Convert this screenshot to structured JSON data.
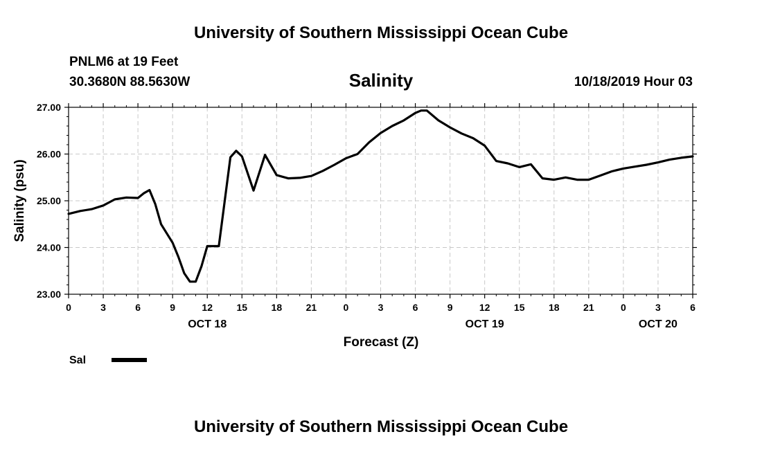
{
  "header": {
    "title_top": "University of Southern Mississippi Ocean Cube",
    "station": "PNLM6 at 19 Feet",
    "coords": "30.3680N 88.5630W",
    "variable": "Salinity",
    "datetime": "10/18/2019 Hour 03",
    "title_bottom": "University of Southern Mississippi Ocean Cube"
  },
  "chart_data": {
    "type": "line",
    "title": "Salinity",
    "xlabel": "Forecast (Z)",
    "ylabel": "Salinity (psu)",
    "xlim": [
      0,
      54
    ],
    "ylim": [
      23,
      27
    ],
    "yticks": [
      23,
      24,
      25,
      26,
      27
    ],
    "ytick_labels": [
      "23.00",
      "24.00",
      "25.00",
      "26.00",
      "27.00"
    ],
    "xticks": [
      0,
      3,
      6,
      9,
      12,
      15,
      18,
      21,
      24,
      27,
      30,
      33,
      36,
      39,
      42,
      45,
      48,
      51,
      54
    ],
    "xtick_labels": [
      "0",
      "3",
      "6",
      "9",
      "12",
      "15",
      "18",
      "21",
      "0",
      "3",
      "6",
      "9",
      "12",
      "15",
      "18",
      "21",
      "0",
      "3",
      "6"
    ],
    "date_labels": [
      {
        "x": 12,
        "label": "OCT 18"
      },
      {
        "x": 36,
        "label": "OCT 19"
      },
      {
        "x": 51,
        "label": "OCT 20"
      }
    ],
    "grid": true,
    "legend": {
      "position": "bottom-left",
      "entries": [
        {
          "label": "Sal"
        }
      ]
    },
    "series": [
      {
        "name": "Sal",
        "color": "#000000",
        "x": [
          0,
          1,
          2,
          3,
          4,
          5,
          6,
          6.5,
          7,
          7.5,
          8,
          9,
          9.5,
          10,
          10.5,
          11,
          11.5,
          12,
          13,
          14,
          14.5,
          15,
          16,
          17,
          18,
          19,
          20,
          21,
          22,
          23,
          24,
          25,
          26,
          27,
          28,
          29,
          30,
          30.5,
          31,
          32,
          33,
          34,
          35,
          36,
          37,
          38,
          39,
          40,
          41,
          42,
          43,
          44,
          45,
          46,
          47,
          48,
          49,
          50,
          51,
          52,
          53,
          54
        ],
        "values": [
          24.72,
          24.78,
          24.82,
          24.9,
          25.03,
          25.07,
          25.06,
          25.16,
          25.23,
          24.93,
          24.5,
          24.1,
          23.8,
          23.45,
          23.27,
          23.27,
          23.6,
          24.03,
          24.03,
          25.93,
          26.07,
          25.95,
          25.22,
          25.98,
          25.55,
          25.48,
          25.49,
          25.53,
          25.64,
          25.77,
          25.91,
          26.0,
          26.25,
          26.45,
          26.6,
          26.72,
          26.88,
          26.93,
          26.93,
          26.72,
          26.57,
          26.44,
          26.34,
          26.18,
          25.85,
          25.8,
          25.72,
          25.78,
          25.48,
          25.45,
          25.5,
          25.45,
          25.45,
          25.54,
          25.63,
          25.69,
          25.73,
          25.77,
          25.82,
          25.88,
          25.92,
          25.95
        ]
      }
    ]
  }
}
